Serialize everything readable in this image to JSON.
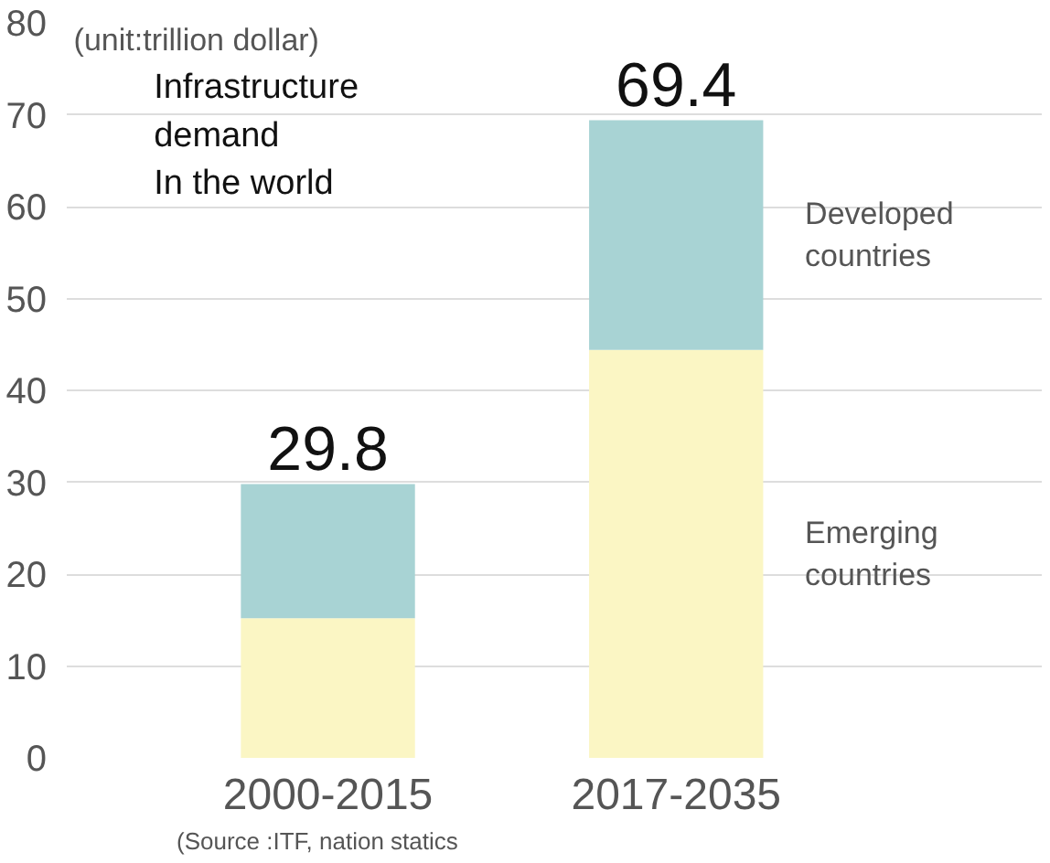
{
  "chart_data": {
    "type": "bar",
    "stacked": true,
    "title": "Infrastructure\ndemand\nIn the world",
    "ylabel": "(unit:trillion dollar)",
    "categories": [
      "2000-2015",
      "2017-2035"
    ],
    "series": [
      {
        "name": "Emerging countries",
        "color": "#fbf6c4",
        "values": [
          15.2,
          44.4
        ]
      },
      {
        "name": "Developed countries",
        "color": "#a8d3d4",
        "values": [
          14.6,
          25.0
        ]
      }
    ],
    "totals": [
      "29.8",
      "69.4"
    ],
    "ylim": [
      0,
      80
    ],
    "yticks": [
      0,
      10,
      20,
      30,
      40,
      50,
      60,
      70,
      80
    ],
    "grid": "y",
    "annotations": [
      "(Source :ITF, nation statics"
    ]
  }
}
